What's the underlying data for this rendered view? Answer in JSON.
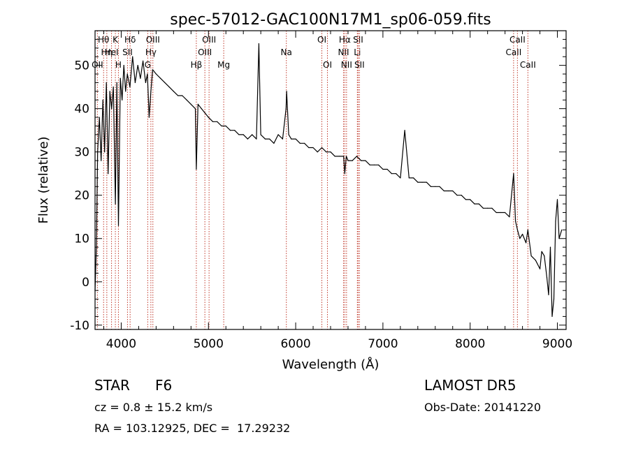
{
  "chart_data": {
    "type": "line",
    "title": "spec-57012-GAC100N17M1_sp06-059.fits",
    "xlabel": "Wavelength (Å)",
    "ylabel": "Flux (relative)",
    "xlim": [
      3700,
      9100
    ],
    "ylim": [
      -11,
      58
    ],
    "xticks": [
      4000,
      5000,
      6000,
      7000,
      8000,
      9000
    ],
    "yticks": [
      -10,
      0,
      10,
      20,
      30,
      40,
      50
    ],
    "grid": false,
    "series": [
      {
        "color": "#000000",
        "x": [
          3700,
          3715,
          3730,
          3750,
          3770,
          3790,
          3810,
          3830,
          3850,
          3870,
          3890,
          3910,
          3933,
          3950,
          3968,
          3990,
          4010,
          4030,
          4050,
          4070,
          4100,
          4130,
          4160,
          4190,
          4220,
          4250,
          4280,
          4300,
          4320,
          4340,
          4360,
          4400,
          4450,
          4500,
          4550,
          4600,
          4650,
          4700,
          4750,
          4800,
          4850,
          4861,
          4880,
          4920,
          4960,
          5000,
          5050,
          5100,
          5150,
          5200,
          5250,
          5300,
          5350,
          5400,
          5450,
          5500,
          5550,
          5578,
          5600,
          5650,
          5700,
          5750,
          5800,
          5850,
          5890,
          5896,
          5920,
          5950,
          6000,
          6050,
          6100,
          6150,
          6200,
          6250,
          6300,
          6350,
          6400,
          6450,
          6500,
          6550,
          6563,
          6580,
          6600,
          6650,
          6700,
          6750,
          6800,
          6850,
          6900,
          6950,
          7000,
          7050,
          7100,
          7150,
          7200,
          7250,
          7300,
          7350,
          7400,
          7450,
          7500,
          7550,
          7600,
          7650,
          7700,
          7750,
          7800,
          7850,
          7900,
          7950,
          8000,
          8050,
          8100,
          8150,
          8200,
          8250,
          8300,
          8350,
          8400,
          8450,
          8498,
          8520,
          8542,
          8570,
          8600,
          8640,
          8662,
          8700,
          8750,
          8800,
          8820,
          8850,
          8880,
          8900,
          8920,
          8940,
          8960,
          8980,
          9000,
          9020,
          9050
        ],
        "y": [
          -2,
          8,
          30,
          38,
          28,
          42,
          30,
          46,
          25,
          44,
          40,
          45,
          18,
          46,
          13,
          47,
          42,
          50,
          44,
          48,
          45,
          52,
          46,
          50,
          47,
          51,
          46,
          48,
          38,
          44,
          49,
          48,
          47,
          46,
          45,
          44,
          43,
          43,
          42,
          41,
          40,
          26,
          41,
          40,
          39,
          38,
          37,
          37,
          36,
          36,
          35,
          35,
          34,
          34,
          33,
          34,
          33,
          55,
          34,
          33,
          33,
          32,
          34,
          33,
          40,
          44,
          34,
          33,
          33,
          32,
          32,
          31,
          31,
          30,
          31,
          30,
          30,
          29,
          29,
          29,
          25,
          29,
          28,
          28,
          29,
          28,
          28,
          27,
          27,
          27,
          26,
          26,
          25,
          25,
          24,
          35,
          24,
          24,
          23,
          23,
          23,
          22,
          22,
          22,
          21,
          21,
          21,
          20,
          20,
          19,
          19,
          18,
          18,
          17,
          17,
          17,
          16,
          16,
          16,
          15,
          25,
          14,
          12,
          10,
          11,
          9,
          12,
          6,
          5,
          3,
          7,
          6,
          1,
          -3,
          8,
          -8,
          -4,
          14,
          19,
          10,
          12
        ]
      }
    ],
    "line_markers": {
      "color": "#c0392b",
      "lines": [
        {
          "wavelength": 3727,
          "label": "OII",
          "row": 2
        },
        {
          "wavelength": 3798,
          "label": "Hθ",
          "row": 0
        },
        {
          "wavelength": 3835,
          "label": "Hη",
          "row": 1
        },
        {
          "wavelength": 3889,
          "label": "HeI",
          "row": 1
        },
        {
          "wavelength": 3933,
          "label": "K",
          "row": 0
        },
        {
          "wavelength": 3968,
          "label": "H",
          "row": 2
        },
        {
          "wavelength": 4072,
          "label": "SII",
          "row": 1
        },
        {
          "wavelength": 4102,
          "label": "Hδ",
          "row": 0
        },
        {
          "wavelength": 4304,
          "label": "G",
          "row": 2
        },
        {
          "wavelength": 4340,
          "label": "Hγ",
          "row": 1
        },
        {
          "wavelength": 4363,
          "label": "OIII",
          "row": 0
        },
        {
          "wavelength": 4861,
          "label": "Hβ",
          "row": 2
        },
        {
          "wavelength": 4959,
          "label": "OIII",
          "row": 1
        },
        {
          "wavelength": 5007,
          "label": "OIII",
          "row": 0
        },
        {
          "wavelength": 5175,
          "label": "Mg",
          "row": 2
        },
        {
          "wavelength": 5893,
          "label": "Na",
          "row": 1
        },
        {
          "wavelength": 6300,
          "label": "OI",
          "row": 0
        },
        {
          "wavelength": 6364,
          "label": "OI",
          "row": 2
        },
        {
          "wavelength": 6548,
          "label": "NII",
          "row": 1
        },
        {
          "wavelength": 6563,
          "label": "Hα",
          "row": 0
        },
        {
          "wavelength": 6583,
          "label": "NII",
          "row": 2
        },
        {
          "wavelength": 6707,
          "label": "Li",
          "row": 1
        },
        {
          "wavelength": 6716,
          "label": "SII",
          "row": 0
        },
        {
          "wavelength": 6731,
          "label": "SII",
          "row": 2
        },
        {
          "wavelength": 8498,
          "label": "CaII",
          "row": 1
        },
        {
          "wavelength": 8542,
          "label": "CaII",
          "row": 0
        },
        {
          "wavelength": 8662,
          "label": "CaII",
          "row": 2
        }
      ]
    }
  },
  "info": {
    "object_class": "STAR",
    "subclass": "F6",
    "redshift_text": "cz = 0.8 ± 15.2 km/s",
    "coords_text": "RA = 103.12925, DEC =  17.29232",
    "survey": "LAMOST DR5",
    "obs_date_text": "Obs-Date: 20141220"
  }
}
